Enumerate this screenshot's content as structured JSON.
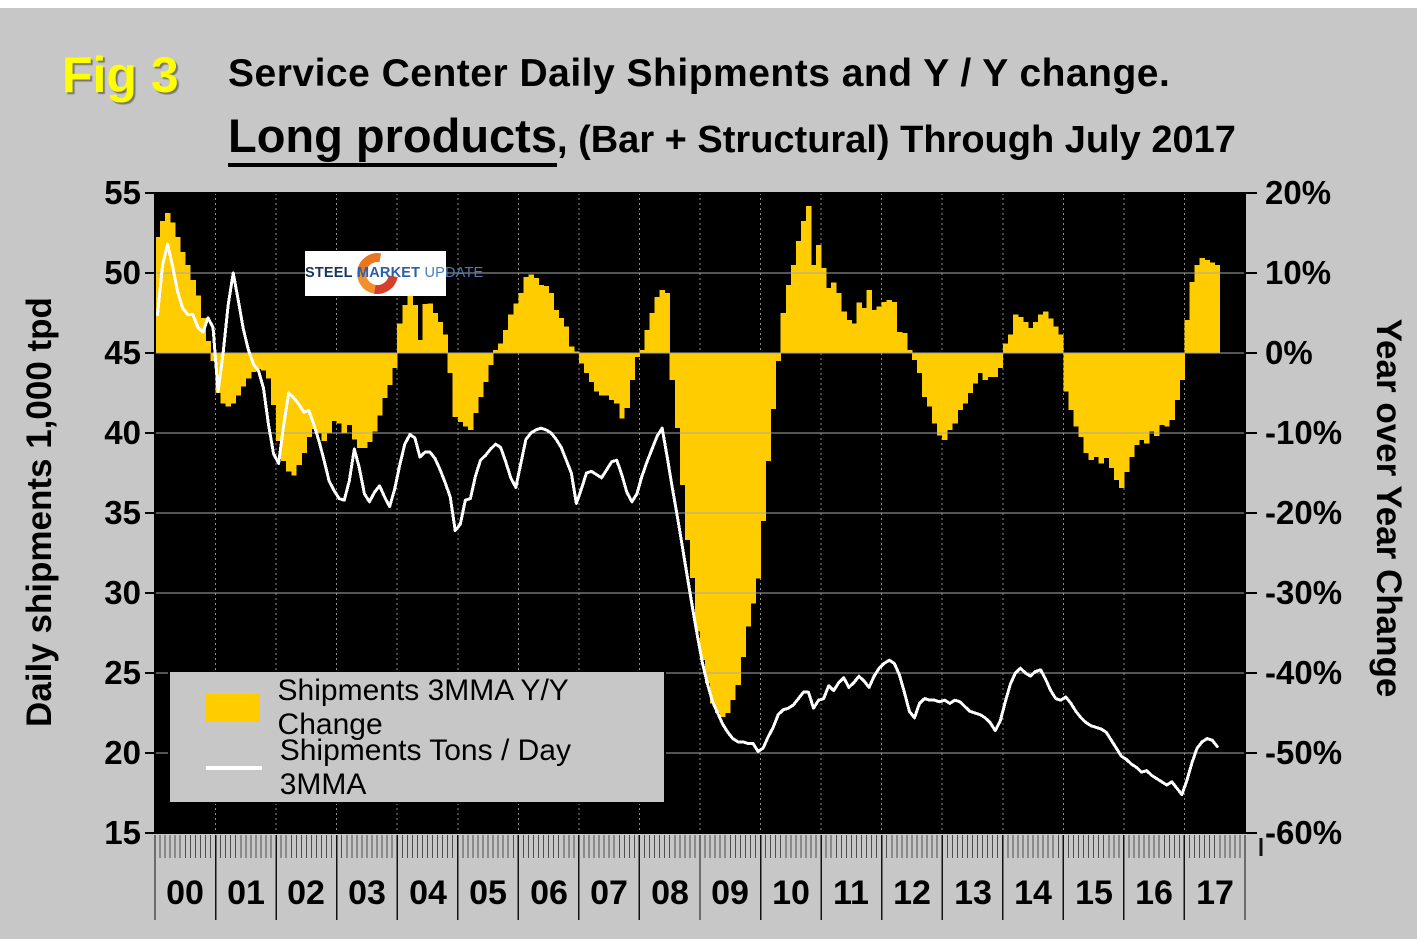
{
  "header": {
    "fig_label": "Fig 3",
    "title_line1": "Service Center Daily Shipments and Y / Y change.",
    "title_line2_emphasis": "Long products",
    "title_line2_rest": ", (Bar + Structural) Through July 2017"
  },
  "logo": {
    "word1": "STEEL",
    "word2": "MARKET",
    "word3": "UPDATE"
  },
  "legend": {
    "items": [
      {
        "label": "Shipments 3MMA Y/Y Change",
        "swatch": "bar"
      },
      {
        "label": "Shipments Tons / Day 3MMA",
        "swatch": "line"
      }
    ]
  },
  "colors": {
    "background": "#c7c7c7",
    "plot_bg": "#000000",
    "bar": "#ffcc00",
    "line": "#ffffff",
    "fig_label": "#ffff00",
    "gridline": "#a8a8a8",
    "year_gridline": "#8d8d8d"
  },
  "chart_data": {
    "type": "bar",
    "subtype": "combo-bar-line-monthly",
    "x_start": "2000-01",
    "x_end": "2017-07",
    "categories_years": [
      "00",
      "01",
      "02",
      "03",
      "04",
      "05",
      "06",
      "07",
      "08",
      "09",
      "10",
      "11",
      "12",
      "13",
      "14",
      "15",
      "16",
      "17"
    ],
    "left_axis": {
      "title": "Daily shipments 1,000 tpd",
      "ticks": [
        55,
        50,
        45,
        40,
        35,
        30,
        25,
        20,
        15
      ],
      "min": 15,
      "max": 55
    },
    "right_axis": {
      "title": "Year over Year Change",
      "tick_labels": [
        "20%",
        "10%",
        "0%",
        "-10%",
        "-20%",
        "-30%",
        "-40%",
        "-50%",
        "-60%"
      ],
      "min": -60,
      "max": 20
    },
    "grid": true,
    "legend_position": "bottom-left-inside",
    "series": [
      {
        "name": "Shipments 3MMA Y/Y Change",
        "type": "bar",
        "axis": "right",
        "unit": "%",
        "values": [
          14.5,
          16.5,
          17.5,
          16.3,
          14.5,
          12.6,
          11,
          9.1,
          7.2,
          4.4,
          1.5,
          -1,
          -5,
          -6.3,
          -6.7,
          -6.3,
          -5.3,
          -4.2,
          -3.2,
          -2.4,
          -2,
          -2.2,
          -3.2,
          -6.5,
          -11,
          -13.5,
          -14.8,
          -15.3,
          -14,
          -12.5,
          -10.5,
          -9.5,
          -10,
          -11,
          -10,
          -8.5,
          -8.8,
          -10,
          -9,
          -10.8,
          -11.9,
          -11.9,
          -11.1,
          -9.8,
          -7.8,
          -5.6,
          -4,
          -1.9,
          3.7,
          6,
          8.5,
          6,
          1.6,
          6.1,
          6.2,
          5,
          3.9,
          2.3,
          -2.5,
          -8,
          -8.6,
          -9.2,
          -9.6,
          -7.5,
          -5.5,
          -3.6,
          -1.5,
          0.4,
          1.2,
          2.9,
          4.8,
          6.2,
          7.5,
          9.5,
          9.8,
          9.4,
          8.5,
          8.4,
          7.5,
          5.4,
          4.4,
          3.3,
          0.8,
          0.2,
          -1.3,
          -2.5,
          -3.6,
          -4.8,
          -5.3,
          -5.3,
          -5.9,
          -6.3,
          -8.2,
          -6.9,
          -3.4,
          -0.5,
          0.4,
          2.9,
          5,
          7,
          7.9,
          7.5,
          -3.4,
          -9.4,
          -16.5,
          -23.4,
          -28.1,
          -34.8,
          -38.4,
          -41.3,
          -43.8,
          -45,
          -45.5,
          -45,
          -43.4,
          -41.5,
          -38,
          -34.2,
          -31.3,
          -28.2,
          -21,
          -13.5,
          -7,
          -1,
          5,
          8.5,
          11,
          14,
          16.5,
          18.4,
          11,
          13.5,
          10.6,
          8.1,
          8.8,
          7.5,
          5.2,
          4.1,
          3.7,
          6.3,
          5.6,
          7.9,
          5.4,
          5.8,
          6.4,
          6.6,
          6.4,
          2.6,
          2.5,
          0.4,
          -0.9,
          -2.5,
          -5.5,
          -6.7,
          -8.8,
          -10.3,
          -10.9,
          -9.6,
          -8.8,
          -7.1,
          -6.3,
          -5,
          -3.8,
          -2.5,
          -3.4,
          -3,
          -3,
          -1.9,
          1.2,
          2.3,
          4.8,
          4.5,
          3.9,
          3.1,
          3.9,
          4.8,
          5.2,
          4.3,
          3.3,
          2.3,
          -4.8,
          -7.1,
          -9.2,
          -10.5,
          -12.5,
          -13.4,
          -13,
          -13.8,
          -13.1,
          -14.4,
          -15.9,
          -16.9,
          -14.9,
          -13,
          -11.5,
          -10.9,
          -11.3,
          -9.8,
          -10.4,
          -9,
          -9.2,
          -8.4,
          -5.9,
          -3.4,
          4.1,
          8.9,
          11,
          11.9,
          11.6,
          11.3,
          11
        ]
      },
      {
        "name": "Shipments Tons / Day 3MMA",
        "type": "line",
        "axis": "left",
        "unit": "1,000 tpd",
        "values": [
          47.4,
          50.5,
          51.8,
          50.4,
          48.8,
          47.8,
          47.4,
          47.4,
          46.6,
          46.3,
          47.2,
          46.6,
          42.6,
          45,
          48,
          50,
          48.3,
          46.5,
          45.2,
          44.3,
          43.9,
          42.8,
          40.5,
          38.7,
          38.1,
          40.5,
          42.5,
          42.2,
          41.8,
          41.3,
          41.4,
          40.5,
          39.5,
          38.3,
          37,
          36.4,
          35.9,
          35.8,
          37,
          39,
          37.8,
          36.2,
          35.7,
          36.3,
          36.7,
          36,
          35.4,
          36.5,
          38,
          39.3,
          39.9,
          39.7,
          38.5,
          38.8,
          38.8,
          38.4,
          37.7,
          36.9,
          36,
          33.9,
          34.3,
          35.8,
          35.9,
          37.3,
          38.3,
          38.6,
          39,
          39.3,
          39.1,
          38.2,
          37.2,
          36.6,
          38.1,
          39.6,
          40,
          40.2,
          40.3,
          40.2,
          40,
          39.6,
          39.1,
          38.3,
          37.5,
          35.6,
          36.5,
          37.5,
          37.6,
          37.4,
          37.2,
          37.7,
          38.2,
          38.3,
          37.4,
          36.3,
          35.7,
          36.2,
          37.3,
          38.2,
          39,
          39.8,
          40.3,
          38.5,
          36.6,
          34.8,
          32.9,
          31,
          29.1,
          27.3,
          25.6,
          24.3,
          23.2,
          22.5,
          21.8,
          21.3,
          20.9,
          20.7,
          20.7,
          20.6,
          20.6,
          20.1,
          20.3,
          21,
          21.6,
          22.4,
          22.7,
          22.8,
          23,
          23.4,
          23.8,
          23.8,
          22.8,
          23.3,
          23.4,
          24.2,
          23.9,
          24.4,
          24.7,
          24.1,
          24.4,
          24.8,
          24.5,
          24.1,
          24.8,
          25.3,
          25.6,
          25.8,
          25.6,
          24.9,
          23.8,
          22.6,
          22.2,
          23.1,
          23.4,
          23.3,
          23.3,
          23.2,
          23.3,
          23.1,
          23.3,
          23.2,
          22.9,
          22.6,
          22.5,
          22.4,
          22.2,
          21.9,
          21.4,
          22,
          23.2,
          24.3,
          25,
          25.3,
          25,
          24.8,
          25.1,
          25.2,
          24.6,
          23.9,
          23.4,
          23.3,
          23.5,
          23.1,
          22.6,
          22.2,
          21.9,
          21.7,
          21.6,
          21.5,
          21.3,
          20.8,
          20.3,
          19.8,
          19.6,
          19.3,
          19.1,
          18.8,
          18.9,
          18.6,
          18.4,
          18.2,
          18,
          18.2,
          17.8,
          17.4,
          18.3,
          19.4,
          20.3,
          20.7,
          20.9,
          20.8,
          20.4
        ]
      }
    ]
  }
}
